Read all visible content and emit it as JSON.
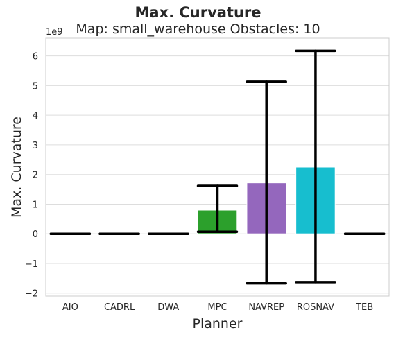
{
  "chart_data": {
    "type": "bar",
    "title": "Max. Curvature",
    "subtitle": "Map: small_warehouse Obstacles: 10",
    "xlabel": "Planner",
    "ylabel": "Max. Curvature",
    "y_offset_label": "1e9",
    "y_scale": 1000000000,
    "ylim": [
      -2.1,
      6.6
    ],
    "yticks": [
      -2,
      -1,
      0,
      1,
      2,
      3,
      4,
      5,
      6
    ],
    "ytick_labels": [
      "−2",
      "−1",
      "0",
      "1",
      "2",
      "3",
      "4",
      "5",
      "6"
    ],
    "grid": "horizontal",
    "categories": [
      "AIO",
      "CADRL",
      "DWA",
      "MPC",
      "NAVREP",
      "ROSNAV",
      "TEB"
    ],
    "values": [
      0,
      0,
      0,
      0.8,
      1.72,
      2.25,
      0
    ],
    "error_low": [
      0,
      0,
      0,
      0.07,
      -1.67,
      -1.63,
      0
    ],
    "error_high": [
      0,
      0,
      0,
      1.62,
      5.13,
      6.17,
      0
    ],
    "colors": [
      "#1f77b4",
      "#ff7f0e",
      "#2ca02c",
      "#2ca02c",
      "#9467bd",
      "#17becf",
      "#e377c2"
    ]
  }
}
